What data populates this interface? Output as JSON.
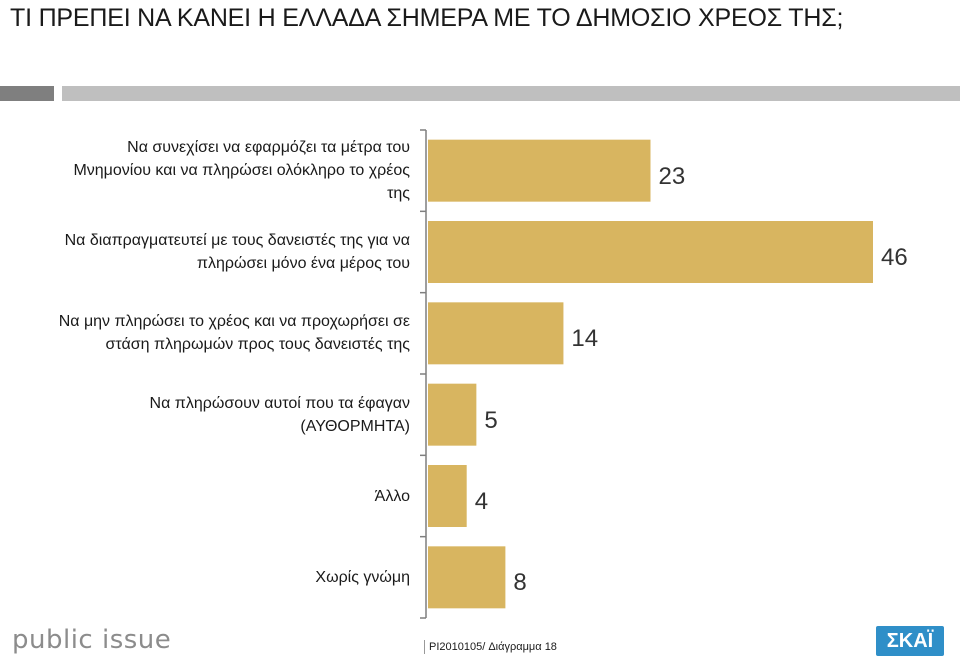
{
  "title": "ΤΙ ΠΡΕΠΕΙ ΝΑ ΚΑΝΕΙ Η ΕΛΛΑΔΑ ΣΗΜΕΡΑ ΜΕ ΤΟ ΔΗΜΟΣΙΟ ΧΡΕΟΣ ΤΗΣ;",
  "chart_data": {
    "type": "bar",
    "orientation": "horizontal",
    "categories": [
      [
        "Να συνεχίσει να εφαρμόζει τα μέτρα του",
        "Μνημονίου και να πληρώσει ολόκληρο το χρέος",
        "της"
      ],
      [
        "Να διαπραγματευτεί με τους δανειστές της για να",
        "πληρώσει μόνο ένα μέρος του"
      ],
      [
        "Να μην πληρώσει το χρέος και να προχωρήσει σε",
        "στάση πληρωμών προς τους δανειστές της"
      ],
      [
        "Να πληρώσουν αυτοί που τα έφαγαν",
        "(ΑΥΘΟΡΜΗΤΑ)"
      ],
      [
        "Άλλο"
      ],
      [
        "Χωρίς γνώμη"
      ]
    ],
    "values": [
      23,
      46,
      14,
      5,
      4,
      8
    ],
    "bar_color": "#d8b560",
    "grid": false,
    "legend": "none"
  },
  "footer": {
    "brand": "public issue",
    "code": "PI2010105/ Διάγραμμα 18",
    "channel": "ΣΚΑΪ"
  }
}
